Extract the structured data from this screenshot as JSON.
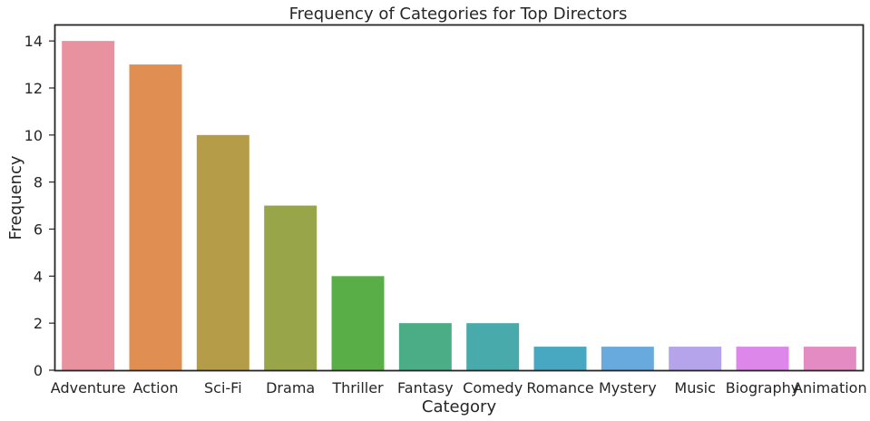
{
  "chart_data": {
    "type": "bar",
    "title": "Frequency of Categories for Top Directors",
    "xlabel": "Category",
    "ylabel": "Frequency",
    "ylim": [
      0,
      14.7
    ],
    "yticks": [
      0,
      2,
      4,
      6,
      8,
      10,
      12,
      14
    ],
    "grid": false,
    "legend": "none",
    "categories": [
      "Adventure",
      "Action",
      "Sci-Fi",
      "Drama",
      "Thriller",
      "Fantasy",
      "Comedy",
      "Romance",
      "Mystery",
      "Music",
      "Biography",
      "Animation"
    ],
    "values": [
      14,
      13,
      10,
      7,
      4,
      2,
      2,
      1,
      1,
      1,
      1,
      1
    ],
    "colors": [
      "#e8929f",
      "#e08e51",
      "#b49c48",
      "#98a548",
      "#5aae48",
      "#4aad85",
      "#49aaac",
      "#48a7c1",
      "#68a9de",
      "#b5a3eb",
      "#de87ea",
      "#e58bc4"
    ]
  }
}
